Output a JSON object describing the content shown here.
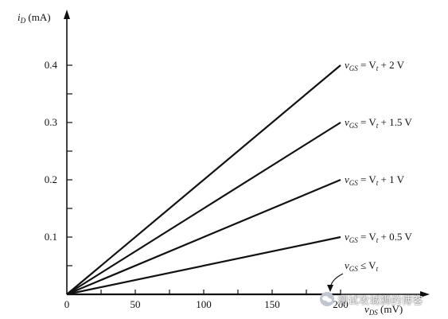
{
  "chart_data": {
    "type": "line",
    "xlabel_parts": {
      "v": "v",
      "sub": "DS",
      "unit": " (mV)"
    },
    "ylabel_parts": {
      "i": "i",
      "sub": "D",
      "unit": " (mA)"
    },
    "xlim": [
      0,
      200
    ],
    "ylim": [
      0,
      0.4
    ],
    "x_ticks": [
      0,
      50,
      100,
      150,
      200
    ],
    "x_tick_labels": [
      "0",
      "50",
      "100",
      "150",
      "200"
    ],
    "y_ticks": [
      0.1,
      0.2,
      0.3,
      0.4
    ],
    "y_tick_labels": [
      "0.1",
      "0.2",
      "0.3",
      "0.4"
    ],
    "grid": false,
    "series": [
      {
        "name": "vGS = Vt + 2 V",
        "label_parts": [
          "v",
          "GS",
          " = V",
          "t",
          " + 2 V"
        ],
        "x": [
          0,
          200
        ],
        "y": [
          0,
          0.4
        ]
      },
      {
        "name": "vGS = Vt + 1.5 V",
        "label_parts": [
          "v",
          "GS",
          " = V",
          "t",
          " + 1.5 V"
        ],
        "x": [
          0,
          200
        ],
        "y": [
          0,
          0.3
        ]
      },
      {
        "name": "vGS = Vt + 1 V",
        "label_parts": [
          "v",
          "GS",
          " = V",
          "t",
          " + 1 V"
        ],
        "x": [
          0,
          200
        ],
        "y": [
          0,
          0.2
        ]
      },
      {
        "name": "vGS = Vt + 0.5 V",
        "label_parts": [
          "v",
          "GS",
          " = V",
          "t",
          " + 0.5 V"
        ],
        "x": [
          0,
          200
        ],
        "y": [
          0,
          0.1
        ]
      },
      {
        "name": "vGS ≤ Vt",
        "label_parts": [
          "v",
          "GS",
          " ≤ V",
          "t",
          ""
        ],
        "x": [
          0,
          200
        ],
        "y": [
          0,
          0
        ]
      }
    ]
  },
  "watermark": {
    "text": "测试攻城狮的博客"
  },
  "colors": {
    "ink": "#111111",
    "background": "#ffffff"
  }
}
